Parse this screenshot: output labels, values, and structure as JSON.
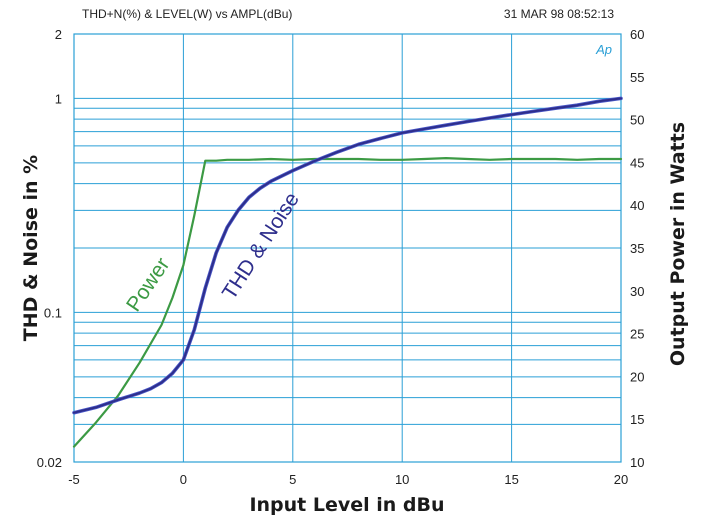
{
  "chart_data": {
    "type": "line",
    "title": "THD+N(%) & LEVEL(W) vs AMPL(dBu)",
    "timestamp": "31 MAR 98 08:52:13",
    "logo": "Ap",
    "xlabel": "Input Level in dBu",
    "ylabel_left": "THD & Noise in %",
    "ylabel_right": "Output Power in Watts",
    "xlim": [
      -5,
      20
    ],
    "ylim_left": [
      0.02,
      2
    ],
    "ylim_right": [
      10,
      60
    ],
    "yscale_left": "log",
    "yscale_right": "linear",
    "grid": true,
    "x_ticks": [
      "-5",
      "0",
      "5",
      "10",
      "15",
      "20"
    ],
    "y_left_ticks": [
      "2",
      "1",
      "0.1",
      "0.02"
    ],
    "y_right_ticks": [
      "60",
      "55",
      "50",
      "45",
      "40",
      "35",
      "30",
      "25",
      "20",
      "15",
      "10"
    ],
    "annotations": {
      "power": "Power",
      "thd": "THD & Noise"
    },
    "colors": {
      "grid": "#2a9fd6",
      "power": "#3c9a44",
      "thd": "#2e2e8c",
      "thd_edge": "#4a58c8"
    },
    "series": [
      {
        "name": "Power",
        "axis": "right",
        "x": [
          -5,
          -4,
          -3,
          -2,
          -1,
          -0.5,
          0,
          0.5,
          1,
          1.5,
          2,
          3,
          4,
          5,
          6,
          7,
          8,
          9,
          10,
          11,
          12,
          13,
          14,
          15,
          16,
          17,
          18,
          19,
          20
        ],
        "values": [
          11.8,
          14.6,
          17.7,
          21.6,
          26.0,
          29.2,
          33.0,
          38.8,
          45.2,
          45.2,
          45.3,
          45.3,
          45.4,
          45.3,
          45.4,
          45.4,
          45.4,
          45.3,
          45.3,
          45.4,
          45.5,
          45.4,
          45.3,
          45.4,
          45.4,
          45.4,
          45.3,
          45.4,
          45.4
        ]
      },
      {
        "name": "THD & Noise",
        "axis": "left",
        "x": [
          -5,
          -4,
          -3,
          -2,
          -1.5,
          -1,
          -0.5,
          0,
          0.5,
          1,
          1.5,
          2,
          2.5,
          3,
          3.5,
          4,
          5,
          6,
          7,
          8,
          9,
          10,
          11,
          12,
          13,
          14,
          15,
          16,
          17,
          18,
          19,
          20
        ],
        "values": [
          0.034,
          0.036,
          0.039,
          0.042,
          0.044,
          0.047,
          0.052,
          0.06,
          0.083,
          0.13,
          0.19,
          0.25,
          0.3,
          0.345,
          0.38,
          0.41,
          0.46,
          0.51,
          0.56,
          0.61,
          0.65,
          0.69,
          0.72,
          0.75,
          0.78,
          0.81,
          0.84,
          0.87,
          0.9,
          0.93,
          0.97,
          1.0
        ]
      }
    ]
  }
}
